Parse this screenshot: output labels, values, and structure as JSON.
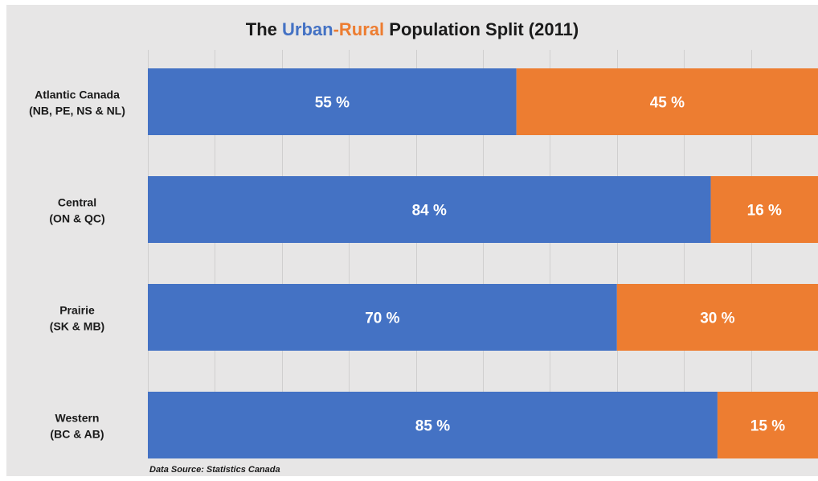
{
  "chart_data": {
    "type": "bar",
    "orientation": "horizontal",
    "stacked": true,
    "title": {
      "prefix": "The ",
      "urban_word": "Urban",
      "dash": "-",
      "rural_word": "Rural",
      "suffix": " Population Split (2011)"
    },
    "categories": [
      {
        "line1": "Atlantic Canada",
        "line2": "(NB, PE, NS & NL)"
      },
      {
        "line1": "Central",
        "line2": "(ON & QC)"
      },
      {
        "line1": "Prairie",
        "line2": "(SK & MB)"
      },
      {
        "line1": "Western",
        "line2": "(BC & AB)"
      }
    ],
    "series": [
      {
        "values": [
          55,
          84,
          70,
          85
        ],
        "labels": [
          "55 %",
          "84 %",
          "70 %",
          "85 %"
        ],
        "color": "#4472c4"
      },
      {
        "values": [
          45,
          16,
          30,
          15
        ],
        "labels": [
          "45 %",
          "16 %",
          "30 %",
          "15 %"
        ],
        "color": "#ed7d31"
      }
    ],
    "xlim": [
      0,
      100
    ],
    "grid": true,
    "legend": "none",
    "source": "Data Source: Statistics Canada"
  },
  "colors": {
    "background": "#e7e6e6",
    "gridline": "#d0cfcf",
    "data_label": "#ffffff",
    "category_label": "#1a1a1a"
  }
}
